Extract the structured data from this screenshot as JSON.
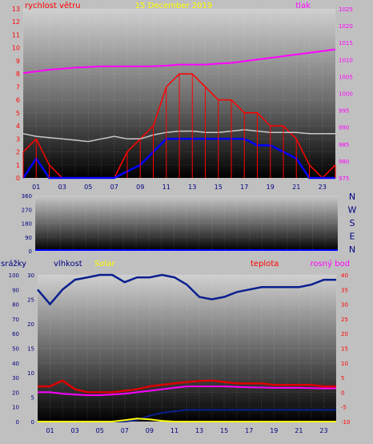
{
  "chart_data": [
    {
      "type": "line",
      "panel": "wind-pressure",
      "date": "15 December 2019",
      "left_label": "rychlost větru",
      "right_label": "tlak",
      "x_ticks": [
        "01",
        "03",
        "05",
        "07",
        "09",
        "11",
        "13",
        "15",
        "17",
        "19",
        "21",
        "23"
      ],
      "left_axis": {
        "ticks": [
          "0",
          "1",
          "2",
          "3",
          "4",
          "5",
          "6",
          "7",
          "8",
          "9",
          "10",
          "11",
          "12",
          "13"
        ],
        "range": [
          0,
          13
        ]
      },
      "right_axis": {
        "ticks": [
          "975",
          "980",
          "985",
          "990",
          "995",
          "1000",
          "1005",
          "1010",
          "1015",
          "1020",
          "1025"
        ],
        "range": [
          975,
          1025
        ]
      },
      "hours": [
        0,
        1,
        2,
        3,
        4,
        5,
        6,
        7,
        8,
        9,
        10,
        11,
        12,
        13,
        14,
        15,
        16,
        17,
        18,
        19,
        20,
        21,
        22,
        23,
        24
      ],
      "series": [
        {
          "key": "gust",
          "color": "#ff0000",
          "values": [
            2,
            3,
            1,
            0,
            0,
            0,
            0,
            0,
            2,
            3,
            4,
            7,
            8,
            8,
            7,
            6,
            6,
            5,
            5,
            4,
            4,
            3,
            1,
            0,
            1
          ]
        },
        {
          "key": "wind_avg",
          "color": "#0000ff",
          "values": [
            0,
            1.5,
            0,
            0,
            0,
            0,
            0,
            0,
            0.5,
            1,
            2,
            3,
            3,
            3,
            3,
            3,
            3,
            3,
            2.5,
            2.5,
            2,
            1.5,
            0,
            0,
            0
          ]
        },
        {
          "key": "direction",
          "color": "#c8c8c8",
          "values": [
            3.4,
            3.2,
            3.1,
            3.0,
            2.9,
            2.8,
            3.0,
            3.2,
            3.0,
            3.0,
            3.3,
            3.5,
            3.6,
            3.6,
            3.5,
            3.5,
            3.6,
            3.7,
            3.6,
            3.5,
            3.5,
            3.5,
            3.4,
            3.4,
            3.4
          ]
        },
        {
          "key": "pressure",
          "color": "#ff00ff",
          "axis": "right",
          "values": [
            1006,
            1006.5,
            1007,
            1007.3,
            1007.6,
            1007.8,
            1008,
            1008,
            1008,
            1008,
            1008,
            1008.2,
            1008.5,
            1008.5,
            1008.5,
            1008.8,
            1009,
            1009.5,
            1010,
            1010.5,
            1011,
            1011.5,
            1012,
            1012.5,
            1013
          ]
        }
      ]
    },
    {
      "type": "line",
      "panel": "direction",
      "right_letters": [
        "N",
        "W",
        "S",
        "E",
        "N"
      ],
      "left_axis": {
        "ticks": [
          "0",
          "90",
          "180",
          "270",
          "360"
        ],
        "range": [
          0,
          360
        ]
      },
      "series": []
    },
    {
      "type": "line",
      "panel": "humidity-temperature",
      "labels": {
        "rain": "srážky",
        "humidity": "vlhkost",
        "solar": "Solar",
        "temp": "teplota",
        "dew": "rosný bod"
      },
      "x_ticks": [
        "01",
        "03",
        "05",
        "07",
        "09",
        "11",
        "13",
        "15",
        "17",
        "19",
        "21",
        "23"
      ],
      "axis_rain": {
        "ticks": [
          "0",
          "10",
          "20",
          "30",
          "40",
          "50",
          "60",
          "70",
          "80",
          "90",
          "100"
        ],
        "range": [
          0,
          100
        ]
      },
      "axis_humidity": {
        "ticks": [
          "0",
          "5",
          "10",
          "15",
          "20",
          "25",
          "30"
        ],
        "range": [
          0,
          30
        ]
      },
      "axis_temp": {
        "ticks": [
          "-10",
          "-5",
          "0",
          "5",
          "10",
          "15",
          "20",
          "25",
          "30",
          "35",
          "40"
        ],
        "range": [
          -10,
          40
        ]
      },
      "hours": [
        0,
        1,
        2,
        3,
        4,
        5,
        6,
        7,
        8,
        9,
        10,
        11,
        12,
        13,
        14,
        15,
        16,
        17,
        18,
        19,
        20,
        21,
        22,
        23,
        24
      ],
      "series": [
        {
          "key": "humidity",
          "color": "#0a1f8f",
          "axis": "humidity",
          "values": [
            27,
            24,
            27,
            29,
            29.5,
            30,
            30,
            28.5,
            29.5,
            29.5,
            30,
            29.5,
            28,
            25.5,
            25,
            25.5,
            26.5,
            27,
            27.5,
            27.5,
            27.5,
            27.5,
            28,
            29,
            29
          ]
        },
        {
          "key": "temperature",
          "color": "#dd0000",
          "axis": "temp",
          "values": [
            2,
            2,
            4,
            1,
            0,
            0,
            0,
            0.5,
            1,
            2,
            2.5,
            3,
            3.5,
            3.8,
            4,
            3.5,
            3,
            3,
            3,
            2.5,
            2.5,
            2.5,
            2.5,
            2,
            2
          ]
        },
        {
          "key": "dew_point",
          "color": "#ff00ff",
          "axis": "temp",
          "values": [
            0,
            0,
            -0.5,
            -0.8,
            -1,
            -1,
            -0.8,
            -0.5,
            0,
            0.5,
            1,
            1.5,
            2,
            2,
            2,
            2,
            1.8,
            1.7,
            1.6,
            1.5,
            1.5,
            1.5,
            1.4,
            1.3,
            1.3
          ]
        },
        {
          "key": "rain",
          "color": "#0a1f8f",
          "axis": "rain",
          "values": [
            0,
            0,
            0,
            0,
            0,
            0,
            0,
            0,
            1,
            4,
            6,
            7,
            8,
            8,
            8,
            8,
            8,
            8,
            8,
            8,
            8,
            8,
            8,
            8,
            8
          ]
        },
        {
          "key": "solar",
          "color": "#ffff00",
          "axis": "rain",
          "values": [
            0,
            0,
            0,
            0,
            0,
            0,
            0,
            1,
            2,
            1.5,
            0.5,
            0,
            0,
            0,
            0,
            0,
            0,
            0,
            0,
            0,
            0,
            0,
            0,
            0,
            0
          ]
        }
      ]
    }
  ]
}
